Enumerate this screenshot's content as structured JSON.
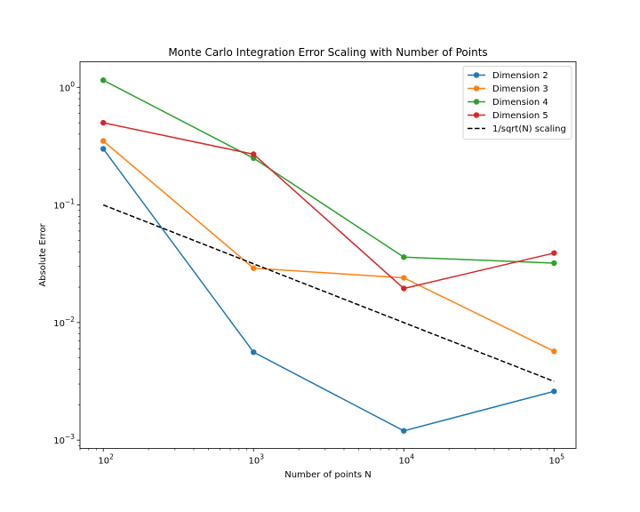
{
  "chart_data": {
    "type": "line",
    "title": "Monte Carlo Integration Error Scaling with Number of Points",
    "xlabel": "Number of points N",
    "ylabel": "Absolute Error",
    "xscale": "log",
    "yscale": "log",
    "xlim": [
      70,
      140000
    ],
    "ylim": [
      0.00085,
      1.65
    ],
    "x": [
      100,
      1000,
      10000,
      100000
    ],
    "x_ticks": [
      {
        "value": 100,
        "base": "10",
        "exp": "2"
      },
      {
        "value": 1000,
        "base": "10",
        "exp": "3"
      },
      {
        "value": 10000,
        "base": "10",
        "exp": "4"
      },
      {
        "value": 100000,
        "base": "10",
        "exp": "5"
      }
    ],
    "y_ticks": [
      {
        "value": 0.001,
        "base": "10",
        "exp": "−3"
      },
      {
        "value": 0.01,
        "base": "10",
        "exp": "−2"
      },
      {
        "value": 0.1,
        "base": "10",
        "exp": "−1"
      },
      {
        "value": 1,
        "base": "10",
        "exp": "0"
      }
    ],
    "grid": false,
    "legend_position": "top-right",
    "series": [
      {
        "name": "Dimension 2",
        "color": "#1f77b4",
        "style": "solid-marker",
        "values": [
          0.3,
          0.0056,
          0.0012,
          0.0026
        ]
      },
      {
        "name": "Dimension 3",
        "color": "#ff7f0e",
        "style": "solid-marker",
        "values": [
          0.35,
          0.029,
          0.024,
          0.0057
        ]
      },
      {
        "name": "Dimension 4",
        "color": "#2ca02c",
        "style": "solid-marker",
        "values": [
          1.15,
          0.25,
          0.036,
          0.032
        ]
      },
      {
        "name": "Dimension 5",
        "color": "#d62728",
        "style": "solid-marker",
        "values": [
          0.5,
          0.27,
          0.0195,
          0.039
        ]
      },
      {
        "name": "1/sqrt(N) scaling",
        "color": "#000000",
        "style": "dashed",
        "values": [
          0.1,
          0.0316,
          0.01,
          0.00316
        ]
      }
    ]
  }
}
